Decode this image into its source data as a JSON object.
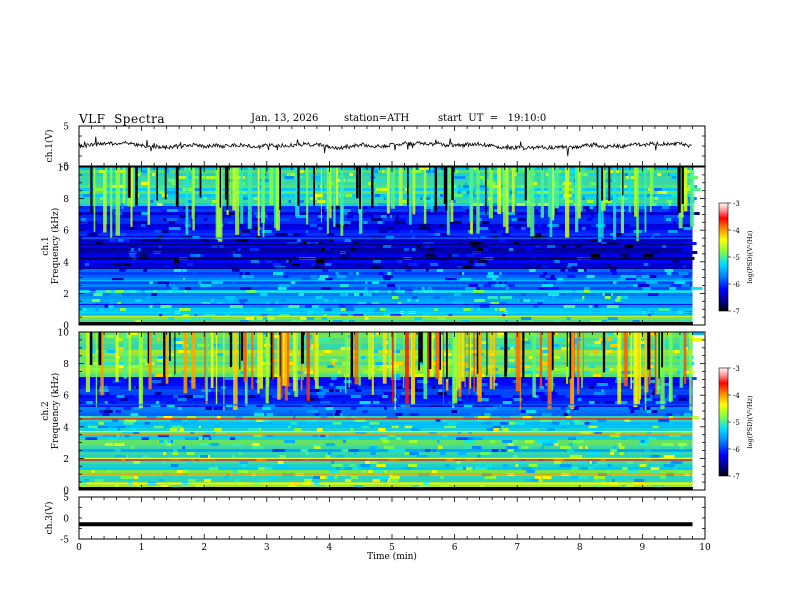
{
  "header": {
    "title": "VLF  Spectra",
    "date": "Jan. 13, 2026",
    "station": "station=ATH",
    "start": "start  UT  =   19:10:0"
  },
  "colors": {
    "background": "#ffffff",
    "trace": "#000000",
    "colormap": [
      "#000000",
      "#00007f",
      "#0000ff",
      "#0060ff",
      "#00c8ff",
      "#40ffb0",
      "#7fff40",
      "#ffff00",
      "#ff9000",
      "#ff0000",
      "#c00000",
      "#ffffff"
    ]
  },
  "chart_data": [
    {
      "type": "line",
      "name": "ch1-voltage",
      "ylabel": "ch.1(V)",
      "ylim": [
        -5,
        5
      ],
      "yticks": [
        "5",
        "-5"
      ],
      "xlim": [
        0,
        10
      ],
      "description_level": 0
    },
    {
      "type": "heatmap",
      "name": "ch1-spectrogram",
      "ylabel": "ch.1\nFrequency (kHz)",
      "ylabel_lines": [
        "ch.1",
        "Frequency (kHz)"
      ],
      "ylim": [
        0,
        10
      ],
      "yticks": [
        "0",
        "2",
        "4",
        "6",
        "8",
        "10"
      ],
      "xlim": [
        0,
        10
      ],
      "data_end_min": 9.8,
      "colorbar": {
        "label": "log(PSD)(V²/Hz)",
        "range": [
          -7,
          -3
        ],
        "ticks": [
          "-3",
          "-4",
          "-5",
          "-6",
          "-7"
        ]
      }
    },
    {
      "type": "heatmap",
      "name": "ch2-spectrogram",
      "ylabel": "ch.2\nFrequency (kHz)",
      "ylabel_lines": [
        "ch.2",
        "Frequency (kHz)"
      ],
      "ylim": [
        0,
        10
      ],
      "yticks": [
        "0",
        "2",
        "4",
        "6",
        "8",
        "10"
      ],
      "xlim": [
        0,
        10
      ],
      "data_end_min": 9.8,
      "colorbar": {
        "label": "log(PSD)(V²/Hz)",
        "range": [
          -7,
          -3
        ],
        "ticks": [
          "-3",
          "-4",
          "-5",
          "-6",
          "-7"
        ]
      }
    },
    {
      "type": "line",
      "name": "ch3-voltage",
      "ylabel": "ch.3(V)",
      "ylim": [
        -5,
        5
      ],
      "yticks": [
        "5",
        "0",
        "-5"
      ],
      "xlim": [
        0,
        10
      ],
      "level": -1.5,
      "xlabel": "Time  (min)",
      "xticks": [
        "0",
        "1",
        "2",
        "3",
        "4",
        "5",
        "6",
        "7",
        "8",
        "9",
        "10"
      ]
    }
  ]
}
